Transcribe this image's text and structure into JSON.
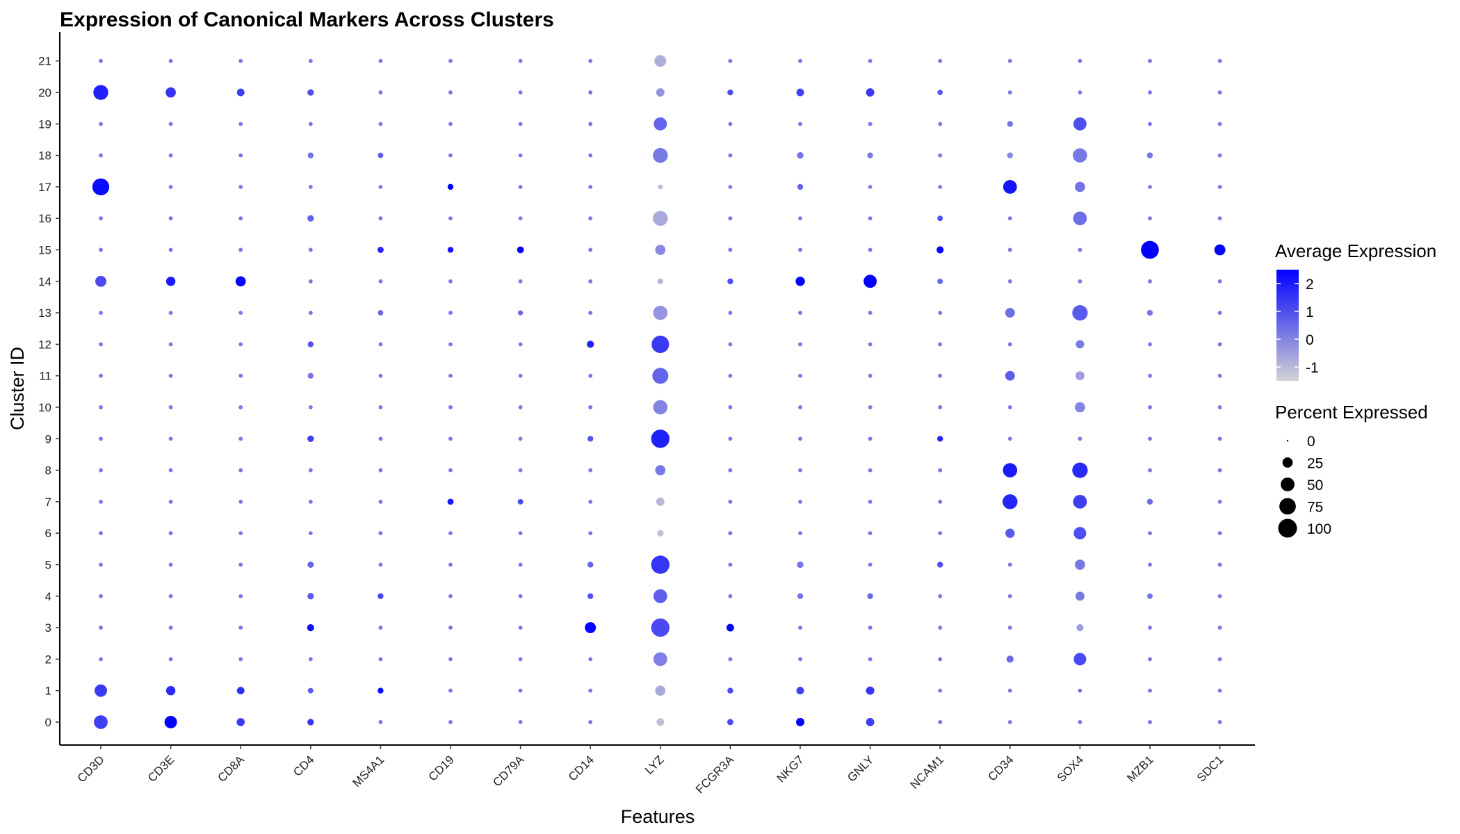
{
  "chart_data": {
    "type": "scatter",
    "subtype": "dot-plot",
    "title": "Expression of Canonical Markers Across Clusters",
    "xlabel": "Features",
    "ylabel": "Cluster ID",
    "features": [
      "CD3D",
      "CD3E",
      "CD8A",
      "CD4",
      "MS4A1",
      "CD19",
      "CD79A",
      "CD14",
      "LYZ",
      "FCGR3A",
      "NKG7",
      "GNLY",
      "NCAM1",
      "CD34",
      "SOX4",
      "MZB1",
      "SDC1"
    ],
    "clusters": [
      "0",
      "1",
      "2",
      "3",
      "4",
      "5",
      "6",
      "7",
      "8",
      "9",
      "10",
      "11",
      "12",
      "13",
      "14",
      "15",
      "16",
      "17",
      "18",
      "19",
      "20",
      "21"
    ],
    "grid": false,
    "color_scale": {
      "title": "Average Expression",
      "low_color": "#d3d3d3",
      "high_color": "#0000ff",
      "range": [
        -1.5,
        2.5
      ],
      "ticks": [
        -1,
        0,
        1,
        2
      ]
    },
    "size_scale": {
      "title": "Percent Expressed",
      "range": [
        0,
        100
      ],
      "ticks": [
        0,
        25,
        50,
        75,
        100
      ]
    },
    "legend_position": "right",
    "points": [
      {
        "feature": "CD3D",
        "cluster": "20",
        "pct": 60,
        "avg": 1.9
      },
      {
        "feature": "CD3D",
        "cluster": "17",
        "pct": 80,
        "avg": 2.3
      },
      {
        "feature": "CD3D",
        "cluster": "14",
        "pct": 30,
        "avg": 1.1
      },
      {
        "feature": "CD3D",
        "cluster": "1",
        "pct": 40,
        "avg": 1.4
      },
      {
        "feature": "CD3D",
        "cluster": "0",
        "pct": 50,
        "avg": 1.3
      },
      {
        "feature": "CD3E",
        "cluster": "20",
        "pct": 25,
        "avg": 1.5
      },
      {
        "feature": "CD3E",
        "cluster": "14",
        "pct": 20,
        "avg": 2.0
      },
      {
        "feature": "CD3E",
        "cluster": "1",
        "pct": 20,
        "avg": 1.7
      },
      {
        "feature": "CD3E",
        "cluster": "0",
        "pct": 40,
        "avg": 2.5
      },
      {
        "feature": "CD8A",
        "cluster": "20",
        "pct": 12,
        "avg": 1.3
      },
      {
        "feature": "CD8A",
        "cluster": "14",
        "pct": 25,
        "avg": 2.4
      },
      {
        "feature": "CD8A",
        "cluster": "1",
        "pct": 12,
        "avg": 1.6
      },
      {
        "feature": "CD8A",
        "cluster": "0",
        "pct": 14,
        "avg": 1.4
      },
      {
        "feature": "CD4",
        "cluster": "20",
        "pct": 8,
        "avg": 1.0
      },
      {
        "feature": "CD4",
        "cluster": "18",
        "pct": 6,
        "avg": 0.3
      },
      {
        "feature": "CD4",
        "cluster": "16",
        "pct": 8,
        "avg": 0.6
      },
      {
        "feature": "CD4",
        "cluster": "12",
        "pct": 6,
        "avg": 0.9
      },
      {
        "feature": "CD4",
        "cluster": "11",
        "pct": 6,
        "avg": 0.3
      },
      {
        "feature": "CD4",
        "cluster": "9",
        "pct": 8,
        "avg": 1.3
      },
      {
        "feature": "CD4",
        "cluster": "5",
        "pct": 7,
        "avg": 0.6
      },
      {
        "feature": "CD4",
        "cluster": "4",
        "pct": 8,
        "avg": 0.8
      },
      {
        "feature": "CD4",
        "cluster": "3",
        "pct": 10,
        "avg": 2.2
      },
      {
        "feature": "CD4",
        "cluster": "1",
        "pct": 5,
        "avg": 0.8
      },
      {
        "feature": "CD4",
        "cluster": "0",
        "pct": 8,
        "avg": 1.5
      },
      {
        "feature": "MS4A1",
        "cluster": "18",
        "pct": 5,
        "avg": 0.8
      },
      {
        "feature": "MS4A1",
        "cluster": "15",
        "pct": 7,
        "avg": 1.8
      },
      {
        "feature": "MS4A1",
        "cluster": "13",
        "pct": 5,
        "avg": 0.5
      },
      {
        "feature": "MS4A1",
        "cluster": "4",
        "pct": 6,
        "avg": 1.2
      },
      {
        "feature": "MS4A1",
        "cluster": "1",
        "pct": 6,
        "avg": 2.3
      },
      {
        "feature": "CD19",
        "cluster": "17",
        "pct": 6,
        "avg": 2.5
      },
      {
        "feature": "CD19",
        "cluster": "15",
        "pct": 6,
        "avg": 2.1
      },
      {
        "feature": "CD19",
        "cluster": "7",
        "pct": 7,
        "avg": 2.0
      },
      {
        "feature": "CD79A",
        "cluster": "15",
        "pct": 9,
        "avg": 2.5
      },
      {
        "feature": "CD79A",
        "cluster": "7",
        "pct": 5,
        "avg": 1.1
      },
      {
        "feature": "CD79A",
        "cluster": "13",
        "pct": 4,
        "avg": 0.5
      },
      {
        "feature": "CD14",
        "cluster": "12",
        "pct": 10,
        "avg": 1.9
      },
      {
        "feature": "CD14",
        "cluster": "9",
        "pct": 6,
        "avg": 0.9
      },
      {
        "feature": "CD14",
        "cluster": "5",
        "pct": 6,
        "avg": 0.6
      },
      {
        "feature": "CD14",
        "cluster": "4",
        "pct": 6,
        "avg": 0.9
      },
      {
        "feature": "CD14",
        "cluster": "3",
        "pct": 30,
        "avg": 2.4
      },
      {
        "feature": "LYZ",
        "cluster": "21",
        "pct": 35,
        "avg": -0.8
      },
      {
        "feature": "LYZ",
        "cluster": "20",
        "pct": 15,
        "avg": -0.3
      },
      {
        "feature": "LYZ",
        "cluster": "19",
        "pct": 45,
        "avg": 0.6
      },
      {
        "feature": "LYZ",
        "cluster": "18",
        "pct": 60,
        "avg": 0.2
      },
      {
        "feature": "LYZ",
        "cluster": "17",
        "pct": 3,
        "avg": -1.0
      },
      {
        "feature": "LYZ",
        "cluster": "16",
        "pct": 60,
        "avg": -0.7
      },
      {
        "feature": "LYZ",
        "cluster": "15",
        "pct": 25,
        "avg": -0.1
      },
      {
        "feature": "LYZ",
        "cluster": "14",
        "pct": 5,
        "avg": -0.9
      },
      {
        "feature": "LYZ",
        "cluster": "13",
        "pct": 55,
        "avg": -0.3
      },
      {
        "feature": "LYZ",
        "cluster": "12",
        "pct": 85,
        "avg": 1.4
      },
      {
        "feature": "LYZ",
        "cluster": "11",
        "pct": 70,
        "avg": 0.6
      },
      {
        "feature": "LYZ",
        "cluster": "10",
        "pct": 55,
        "avg": 0.0
      },
      {
        "feature": "LYZ",
        "cluster": "9",
        "pct": 95,
        "avg": 1.9
      },
      {
        "feature": "LYZ",
        "cluster": "8",
        "pct": 25,
        "avg": 0.2
      },
      {
        "feature": "LYZ",
        "cluster": "7",
        "pct": 15,
        "avg": -1.0
      },
      {
        "feature": "LYZ",
        "cluster": "6",
        "pct": 8,
        "avg": -1.2
      },
      {
        "feature": "LYZ",
        "cluster": "5",
        "pct": 95,
        "avg": 1.5
      },
      {
        "feature": "LYZ",
        "cluster": "4",
        "pct": 50,
        "avg": 0.7
      },
      {
        "feature": "LYZ",
        "cluster": "3",
        "pct": 95,
        "avg": 1.1
      },
      {
        "feature": "LYZ",
        "cluster": "2",
        "pct": 50,
        "avg": 0.1
      },
      {
        "feature": "LYZ",
        "cluster": "1",
        "pct": 25,
        "avg": -0.7
      },
      {
        "feature": "LYZ",
        "cluster": "0",
        "pct": 12,
        "avg": -1.1
      },
      {
        "feature": "FCGR3A",
        "cluster": "20",
        "pct": 6,
        "avg": 1.0
      },
      {
        "feature": "FCGR3A",
        "cluster": "14",
        "pct": 6,
        "avg": 1.0
      },
      {
        "feature": "FCGR3A",
        "cluster": "3",
        "pct": 12,
        "avg": 2.4
      },
      {
        "feature": "FCGR3A",
        "cluster": "1",
        "pct": 6,
        "avg": 1.1
      },
      {
        "feature": "FCGR3A",
        "cluster": "0",
        "pct": 7,
        "avg": 1.1
      },
      {
        "feature": "NKG7",
        "cluster": "20",
        "pct": 12,
        "avg": 1.3
      },
      {
        "feature": "NKG7",
        "cluster": "18",
        "pct": 8,
        "avg": 0.3
      },
      {
        "feature": "NKG7",
        "cluster": "17",
        "pct": 6,
        "avg": 0.6
      },
      {
        "feature": "NKG7",
        "cluster": "14",
        "pct": 20,
        "avg": 2.5
      },
      {
        "feature": "NKG7",
        "cluster": "5",
        "pct": 8,
        "avg": 0.3
      },
      {
        "feature": "NKG7",
        "cluster": "4",
        "pct": 6,
        "avg": 0.3
      },
      {
        "feature": "NKG7",
        "cluster": "1",
        "pct": 12,
        "avg": 1.3
      },
      {
        "feature": "NKG7",
        "cluster": "0",
        "pct": 15,
        "avg": 2.5
      },
      {
        "feature": "GNLY",
        "cluster": "20",
        "pct": 15,
        "avg": 1.4
      },
      {
        "feature": "GNLY",
        "cluster": "18",
        "pct": 6,
        "avg": 0.2
      },
      {
        "feature": "GNLY",
        "cluster": "14",
        "pct": 45,
        "avg": 2.5
      },
      {
        "feature": "GNLY",
        "cluster": "4",
        "pct": 6,
        "avg": 0.5
      },
      {
        "feature": "GNLY",
        "cluster": "1",
        "pct": 15,
        "avg": 1.5
      },
      {
        "feature": "GNLY",
        "cluster": "0",
        "pct": 15,
        "avg": 1.3
      },
      {
        "feature": "NCAM1",
        "cluster": "20",
        "pct": 5,
        "avg": 0.8
      },
      {
        "feature": "NCAM1",
        "cluster": "16",
        "pct": 5,
        "avg": 1.0
      },
      {
        "feature": "NCAM1",
        "cluster": "15",
        "pct": 10,
        "avg": 2.4
      },
      {
        "feature": "NCAM1",
        "cluster": "14",
        "pct": 5,
        "avg": 0.6
      },
      {
        "feature": "NCAM1",
        "cluster": "9",
        "pct": 6,
        "avg": 1.8
      },
      {
        "feature": "NCAM1",
        "cluster": "5",
        "pct": 6,
        "avg": 1.0
      },
      {
        "feature": "CD34",
        "cluster": "19",
        "pct": 6,
        "avg": 0.3
      },
      {
        "feature": "CD34",
        "cluster": "18",
        "pct": 6,
        "avg": -0.1
      },
      {
        "feature": "CD34",
        "cluster": "17",
        "pct": 50,
        "avg": 2.1
      },
      {
        "feature": "CD34",
        "cluster": "13",
        "pct": 22,
        "avg": 0.4
      },
      {
        "feature": "CD34",
        "cluster": "11",
        "pct": 22,
        "avg": 0.7
      },
      {
        "feature": "CD34",
        "cluster": "8",
        "pct": 55,
        "avg": 2.0
      },
      {
        "feature": "CD34",
        "cluster": "7",
        "pct": 60,
        "avg": 1.8
      },
      {
        "feature": "CD34",
        "cluster": "6",
        "pct": 20,
        "avg": 0.8
      },
      {
        "feature": "CD34",
        "cluster": "2",
        "pct": 10,
        "avg": 0.5
      },
      {
        "feature": "SOX4",
        "cluster": "19",
        "pct": 45,
        "avg": 1.0
      },
      {
        "feature": "SOX4",
        "cluster": "18",
        "pct": 55,
        "avg": 0.2
      },
      {
        "feature": "SOX4",
        "cluster": "17",
        "pct": 25,
        "avg": 0.3
      },
      {
        "feature": "SOX4",
        "cluster": "16",
        "pct": 50,
        "avg": 0.4
      },
      {
        "feature": "SOX4",
        "cluster": "13",
        "pct": 65,
        "avg": 0.8
      },
      {
        "feature": "SOX4",
        "cluster": "12",
        "pct": 15,
        "avg": 0.2
      },
      {
        "feature": "SOX4",
        "cluster": "11",
        "pct": 18,
        "avg": -0.5
      },
      {
        "feature": "SOX4",
        "cluster": "10",
        "pct": 25,
        "avg": 0.0
      },
      {
        "feature": "SOX4",
        "cluster": "8",
        "pct": 65,
        "avg": 1.7
      },
      {
        "feature": "SOX4",
        "cluster": "7",
        "pct": 50,
        "avg": 1.3
      },
      {
        "feature": "SOX4",
        "cluster": "6",
        "pct": 40,
        "avg": 1.0
      },
      {
        "feature": "SOX4",
        "cluster": "5",
        "pct": 25,
        "avg": 0.2
      },
      {
        "feature": "SOX4",
        "cluster": "4",
        "pct": 18,
        "avg": 0.2
      },
      {
        "feature": "SOX4",
        "cluster": "3",
        "pct": 10,
        "avg": -0.5
      },
      {
        "feature": "SOX4",
        "cluster": "2",
        "pct": 40,
        "avg": 1.1
      },
      {
        "feature": "MZB1",
        "cluster": "18",
        "pct": 6,
        "avg": 0.3
      },
      {
        "feature": "MZB1",
        "cluster": "15",
        "pct": 90,
        "avg": 2.5
      },
      {
        "feature": "MZB1",
        "cluster": "13",
        "pct": 6,
        "avg": 0.3
      },
      {
        "feature": "MZB1",
        "cluster": "7",
        "pct": 6,
        "avg": 0.5
      },
      {
        "feature": "MZB1",
        "cluster": "4",
        "pct": 5,
        "avg": 0.3
      },
      {
        "feature": "SDC1",
        "cluster": "15",
        "pct": 30,
        "avg": 2.4
      }
    ]
  }
}
